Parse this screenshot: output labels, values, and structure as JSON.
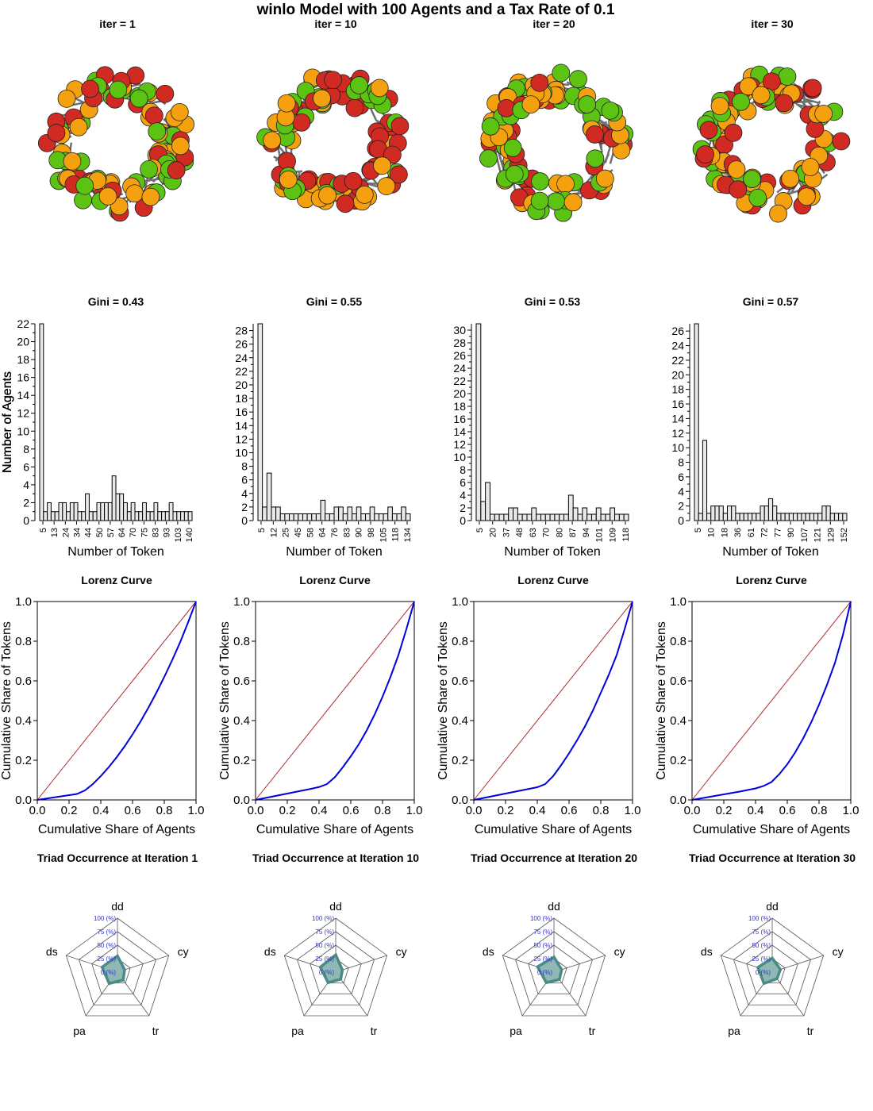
{
  "title": "winlo  Model with  100  Agents and a Tax Rate of  0.1",
  "palette": {
    "orange": "#F5A00F",
    "green": "#5DC313",
    "red": "#D12A22",
    "edge": "#707070",
    "node_outline": "#222222",
    "bar_fill": "#E8E8E8",
    "equality_line": "#B22222",
    "lorenz_line": "#0000DD",
    "radar_fill": "#8FB8B5",
    "radar_stroke": "#4A8A88",
    "radar_axis_text": "#3333CC"
  },
  "chart_data": [
    {
      "type": "network",
      "title": "iter = 1",
      "node_count": 100
    },
    {
      "type": "network",
      "title": "iter = 10",
      "node_count": 100
    },
    {
      "type": "network",
      "title": "iter = 20",
      "node_count": 100
    },
    {
      "type": "network",
      "title": "iter = 30",
      "node_count": 100
    },
    {
      "type": "bar",
      "title": "Gini = 0.43",
      "xlabel": "Number of Token",
      "ylabel": "Number of Agents",
      "x": [
        5,
        9,
        13,
        17,
        20,
        24,
        27,
        31,
        34,
        37,
        40,
        44,
        47,
        50,
        53,
        57,
        60,
        63,
        66,
        70,
        73,
        76,
        80,
        83,
        86,
        90,
        93,
        96,
        100,
        103,
        107,
        110,
        113,
        117,
        120,
        124,
        127,
        130,
        134,
        140
      ],
      "values": [
        22,
        1,
        2,
        1,
        1,
        2,
        2,
        1,
        2,
        2,
        1,
        1,
        3,
        1,
        1,
        2,
        2,
        2,
        2,
        5,
        3,
        3,
        2,
        1,
        2,
        1,
        1,
        2,
        1,
        1,
        2,
        1,
        1,
        1,
        2,
        1,
        1,
        1,
        1,
        1
      ],
      "xticks": [
        "5",
        "13",
        "24",
        "34",
        "44",
        "50",
        "57",
        "64",
        "70",
        "75",
        "83",
        "93",
        "103",
        "140"
      ],
      "yticks": [
        0,
        2,
        4,
        6,
        8,
        10,
        12,
        14,
        16,
        18,
        20,
        22
      ],
      "ylim": [
        0,
        22
      ]
    },
    {
      "type": "bar",
      "title": "Gini = 0.55",
      "xlabel": "Number of Token",
      "ylabel": "Number of Agents",
      "x": [
        5,
        9,
        12,
        15,
        19,
        23,
        27,
        31,
        35,
        39,
        43,
        47,
        51,
        55,
        58,
        62,
        66,
        70,
        74,
        78,
        82,
        86,
        90,
        94,
        98,
        102,
        105,
        110,
        114,
        118,
        122,
        126,
        130,
        134
      ],
      "values": [
        29,
        2,
        7,
        2,
        2,
        1,
        1,
        1,
        1,
        1,
        1,
        1,
        1,
        1,
        3,
        1,
        1,
        2,
        2,
        1,
        2,
        1,
        2,
        1,
        1,
        2,
        1,
        1,
        1,
        2,
        1,
        1,
        2,
        1
      ],
      "xticks": [
        "5",
        "12",
        "25",
        "45",
        "58",
        "64",
        "76",
        "83",
        "90",
        "98",
        "105",
        "118",
        "134"
      ],
      "yticks": [
        0,
        2,
        4,
        6,
        8,
        10,
        12,
        14,
        16,
        18,
        20,
        22,
        24,
        26,
        28
      ],
      "ylim": [
        0,
        29
      ]
    },
    {
      "type": "bar",
      "title": "Gini = 0.53",
      "xlabel": "Number of Token",
      "ylabel": "Number of Agents",
      "x": [
        5,
        7,
        10,
        15,
        20,
        25,
        30,
        34,
        37,
        41,
        45,
        48,
        52,
        56,
        60,
        63,
        67,
        70,
        74,
        78,
        80,
        84,
        87,
        90,
        94,
        98,
        101,
        105,
        109,
        112,
        116,
        118,
        122
      ],
      "values": [
        31,
        3,
        6,
        1,
        1,
        1,
        1,
        2,
        2,
        1,
        1,
        1,
        2,
        1,
        1,
        1,
        1,
        1,
        1,
        1,
        4,
        2,
        1,
        2,
        1,
        1,
        2,
        1,
        1,
        2,
        1,
        1,
        1
      ],
      "xticks": [
        "5",
        "20",
        "37",
        "48",
        "63",
        "70",
        "80",
        "87",
        "94",
        "101",
        "109",
        "118"
      ],
      "yticks": [
        0,
        2,
        4,
        6,
        8,
        10,
        12,
        14,
        16,
        18,
        20,
        22,
        24,
        26,
        28,
        30
      ],
      "ylim": [
        0,
        31
      ]
    },
    {
      "type": "bar",
      "title": "Gini = 0.57",
      "xlabel": "Number of Token",
      "ylabel": "Number of Agents",
      "x": [
        5,
        7,
        10,
        14,
        18,
        22,
        26,
        30,
        36,
        40,
        44,
        50,
        54,
        58,
        62,
        66,
        72,
        76,
        77,
        80,
        84,
        90,
        94,
        98,
        102,
        107,
        110,
        114,
        118,
        122,
        126,
        129,
        134,
        138,
        142,
        148,
        152
      ],
      "values": [
        27,
        1,
        11,
        1,
        2,
        2,
        2,
        1,
        2,
        2,
        1,
        1,
        1,
        1,
        1,
        1,
        2,
        2,
        3,
        2,
        1,
        1,
        1,
        1,
        1,
        1,
        1,
        1,
        1,
        1,
        1,
        2,
        2,
        1,
        1,
        1,
        1
      ],
      "xticks": [
        "5",
        "10",
        "18",
        "36",
        "61",
        "72",
        "77",
        "90",
        "107",
        "121",
        "129",
        "152"
      ],
      "yticks": [
        0,
        2,
        4,
        6,
        8,
        10,
        12,
        14,
        16,
        18,
        20,
        22,
        24,
        26
      ],
      "ylim": [
        0,
        27
      ]
    },
    {
      "type": "line",
      "title": "Lorenz Curve",
      "xlabel": "Cumulative Share of Agents",
      "ylabel": "Cumulative Share of Tokens",
      "x": [
        0,
        0.05,
        0.1,
        0.15,
        0.2,
        0.25,
        0.3,
        0.35,
        0.4,
        0.45,
        0.5,
        0.55,
        0.6,
        0.65,
        0.7,
        0.75,
        0.8,
        0.85,
        0.9,
        0.95,
        1
      ],
      "values": [
        0,
        0.006,
        0.012,
        0.018,
        0.024,
        0.03,
        0.048,
        0.08,
        0.12,
        0.165,
        0.215,
        0.27,
        0.33,
        0.395,
        0.465,
        0.54,
        0.62,
        0.705,
        0.795,
        0.895,
        1
      ],
      "xlim": [
        0,
        1
      ],
      "ylim": [
        0,
        1
      ],
      "ticks": [
        "0.0",
        "0.2",
        "0.4",
        "0.6",
        "0.8",
        "1.0"
      ]
    },
    {
      "type": "line",
      "title": "Lorenz Curve",
      "xlabel": "Cumulative Share of Agents",
      "ylabel": "Cumulative Share of Tokens",
      "x": [
        0,
        0.05,
        0.1,
        0.15,
        0.2,
        0.25,
        0.3,
        0.35,
        0.4,
        0.45,
        0.5,
        0.55,
        0.6,
        0.65,
        0.7,
        0.75,
        0.8,
        0.85,
        0.9,
        0.95,
        1
      ],
      "values": [
        0,
        0.008,
        0.016,
        0.024,
        0.032,
        0.04,
        0.048,
        0.056,
        0.065,
        0.08,
        0.115,
        0.165,
        0.22,
        0.28,
        0.35,
        0.43,
        0.52,
        0.62,
        0.73,
        0.86,
        1
      ],
      "xlim": [
        0,
        1
      ],
      "ylim": [
        0,
        1
      ],
      "ticks": [
        "0.0",
        "0.2",
        "0.4",
        "0.6",
        "0.8",
        "1.0"
      ]
    },
    {
      "type": "line",
      "title": "Lorenz Curve",
      "xlabel": "Cumulative Share of Agents",
      "ylabel": "Cumulative Share of Tokens",
      "x": [
        0,
        0.05,
        0.1,
        0.15,
        0.2,
        0.25,
        0.3,
        0.35,
        0.4,
        0.45,
        0.5,
        0.55,
        0.6,
        0.65,
        0.7,
        0.75,
        0.8,
        0.85,
        0.9,
        0.95,
        1
      ],
      "values": [
        0,
        0.008,
        0.016,
        0.024,
        0.032,
        0.04,
        0.048,
        0.056,
        0.064,
        0.08,
        0.12,
        0.175,
        0.235,
        0.3,
        0.37,
        0.45,
        0.54,
        0.63,
        0.73,
        0.86,
        1
      ],
      "xlim": [
        0,
        1
      ],
      "ylim": [
        0,
        1
      ],
      "ticks": [
        "0.0",
        "0.2",
        "0.4",
        "0.6",
        "0.8",
        "1.0"
      ]
    },
    {
      "type": "line",
      "title": "Lorenz Curve",
      "xlabel": "Cumulative Share of Agents",
      "ylabel": "Cumulative Share of Tokens",
      "x": [
        0,
        0.05,
        0.1,
        0.15,
        0.2,
        0.25,
        0.3,
        0.35,
        0.4,
        0.45,
        0.5,
        0.55,
        0.6,
        0.65,
        0.7,
        0.75,
        0.8,
        0.85,
        0.9,
        0.95,
        1
      ],
      "values": [
        0,
        0.007,
        0.014,
        0.021,
        0.028,
        0.035,
        0.042,
        0.05,
        0.058,
        0.07,
        0.09,
        0.13,
        0.18,
        0.24,
        0.31,
        0.39,
        0.48,
        0.58,
        0.69,
        0.83,
        1
      ],
      "xlim": [
        0,
        1
      ],
      "ylim": [
        0,
        1
      ],
      "ticks": [
        "0.0",
        "0.2",
        "0.4",
        "0.6",
        "0.8",
        "1.0"
      ]
    },
    {
      "type": "radar",
      "title": "Triad Occurrence at Iteration  1",
      "axes": [
        "dd",
        "cy",
        "tr",
        "pa",
        "ds"
      ],
      "values": [
        30,
        14,
        18,
        26,
        30
      ],
      "rings": [
        "0 (%)",
        "25 (%)",
        "50 (%)",
        "75 (%)",
        "100 (%)"
      ]
    },
    {
      "type": "radar",
      "title": "Triad Occurrence at Iteration  10",
      "axes": [
        "dd",
        "cy",
        "tr",
        "pa",
        "ds"
      ],
      "values": [
        32,
        13,
        16,
        24,
        30
      ],
      "rings": [
        "0 (%)",
        "25 (%)",
        "50 (%)",
        "75 (%)",
        "100 (%)"
      ]
    },
    {
      "type": "radar",
      "title": "Triad Occurrence at Iteration  20",
      "axes": [
        "dd",
        "cy",
        "tr",
        "pa",
        "ds"
      ],
      "values": [
        28,
        15,
        17,
        24,
        32
      ],
      "rings": [
        "0 (%)",
        "25 (%)",
        "50 (%)",
        "75 (%)",
        "100 (%)"
      ]
    },
    {
      "type": "radar",
      "title": "Triad Occurrence at Iteration  30",
      "axes": [
        "dd",
        "cy",
        "tr",
        "pa",
        "ds"
      ],
      "values": [
        26,
        16,
        15,
        26,
        28
      ],
      "rings": [
        "0 (%)",
        "25 (%)",
        "50 (%)",
        "75 (%)",
        "100 (%)"
      ]
    }
  ]
}
